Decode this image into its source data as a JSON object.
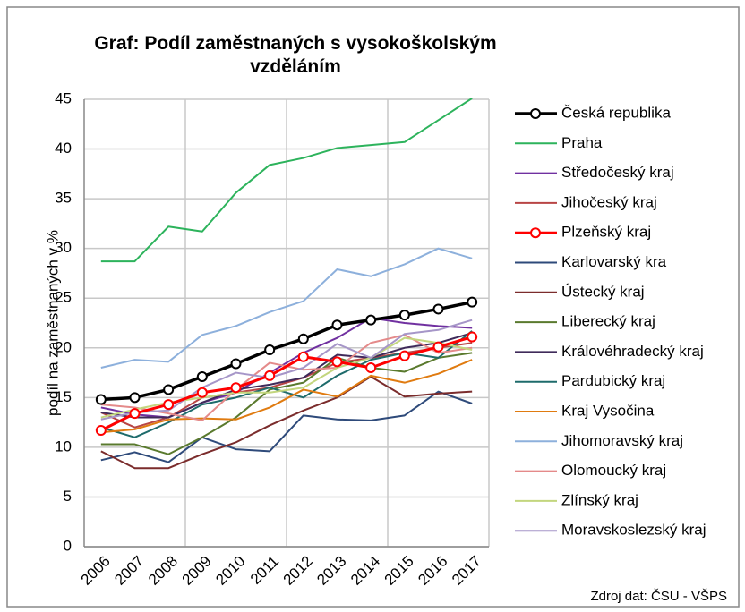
{
  "chart_data": {
    "type": "line",
    "title": "Graf: Podíl zaměstnaných s vysokoškolským vzděláním",
    "y_label": "podíl na zaměstnaných v %",
    "source": "Zdroj dat: ČSU - VŠPS",
    "categories": [
      "2006",
      "2007",
      "2008",
      "2009",
      "2010",
      "2011",
      "2012",
      "2013",
      "2014",
      "2015",
      "2016",
      "2017"
    ],
    "ylim": [
      0,
      45
    ],
    "yticks": [
      0,
      5,
      10,
      15,
      20,
      25,
      30,
      35,
      40,
      45
    ],
    "grid": true,
    "x_grid_every": 3,
    "legend": "right",
    "series": [
      {
        "name": "Česká republika",
        "color": "#000000",
        "width": 3.5,
        "markers": true,
        "values": [
          14.8,
          15.0,
          15.8,
          17.1,
          18.4,
          19.8,
          20.9,
          22.3,
          22.8,
          23.3,
          23.9,
          24.6
        ]
      },
      {
        "name": "Praha",
        "color": "#2db35c",
        "width": 2,
        "values": [
          28.7,
          28.7,
          32.2,
          31.7,
          35.6,
          38.4,
          39.1,
          40.1,
          40.4,
          40.7,
          42.9,
          45.1
        ]
      },
      {
        "name": "Středočeský kraj",
        "color": "#7030a0",
        "width": 2,
        "values": [
          14.0,
          13.3,
          13.0,
          14.5,
          15.5,
          17.5,
          19.5,
          21.0,
          23.0,
          22.5,
          22.2,
          22.0
        ]
      },
      {
        "name": "Jihočeský kraj",
        "color": "#b84545",
        "width": 2,
        "values": [
          13.5,
          12.0,
          13.0,
          15.0,
          15.5,
          16.0,
          17.0,
          18.5,
          19.0,
          19.5,
          20.0,
          20.5
        ]
      },
      {
        "name": "Plzeňský kraj",
        "color": "#ff0000",
        "width": 3,
        "markers": true,
        "values": [
          11.7,
          13.4,
          14.3,
          15.5,
          16.0,
          17.2,
          19.1,
          18.6,
          18.0,
          19.2,
          20.1,
          21.1
        ]
      },
      {
        "name": "Karlovarský kra",
        "color": "#2e4a7a",
        "width": 2,
        "values": [
          8.7,
          9.5,
          8.5,
          11.0,
          9.8,
          9.6,
          13.2,
          12.8,
          12.7,
          13.2,
          15.6,
          14.4
        ]
      },
      {
        "name": "Ústecký kraj",
        "color": "#7b2c2c",
        "width": 2,
        "values": [
          9.6,
          7.9,
          7.9,
          9.3,
          10.5,
          12.2,
          13.7,
          15.0,
          17.1,
          15.1,
          15.4,
          15.6
        ]
      },
      {
        "name": "Liberecký kraj",
        "color": "#5a7a2e",
        "width": 2,
        "values": [
          10.3,
          10.3,
          9.3,
          11.0,
          13.0,
          15.8,
          16.5,
          19.0,
          18.0,
          17.6,
          19.0,
          19.5
        ]
      },
      {
        "name": "Královéhradecký kraj",
        "color": "#3f2a5a",
        "width": 2,
        "values": [
          13.5,
          13.0,
          13.0,
          14.5,
          15.8,
          16.3,
          17.0,
          19.3,
          19.0,
          20.0,
          20.5,
          21.5
        ]
      },
      {
        "name": "Pardubický kraj",
        "color": "#1e6b6b",
        "width": 2,
        "values": [
          12.0,
          11.0,
          12.5,
          14.3,
          15.0,
          16.0,
          15.0,
          17.2,
          18.8,
          19.5,
          19.0,
          21.7
        ]
      },
      {
        "name": "Kraj Vysočina",
        "color": "#e07b10",
        "width": 2,
        "values": [
          11.5,
          11.8,
          12.8,
          12.9,
          12.8,
          14.0,
          15.8,
          15.1,
          17.2,
          16.5,
          17.4,
          18.8
        ]
      },
      {
        "name": "Jihomoravský kraj",
        "color": "#8db0dc",
        "width": 2,
        "values": [
          18.0,
          18.8,
          18.6,
          21.3,
          22.2,
          23.6,
          24.7,
          27.9,
          27.2,
          28.4,
          30.0,
          29.0
        ]
      },
      {
        "name": "Olomoucký kraj",
        "color": "#e48a8a",
        "width": 2,
        "values": [
          14.3,
          14.0,
          13.4,
          12.7,
          15.8,
          18.5,
          17.8,
          18.0,
          20.5,
          21.3,
          19.5,
          20.0
        ]
      },
      {
        "name": "Zlínský kraj",
        "color": "#c3d67e",
        "width": 2,
        "values": [
          13.0,
          13.8,
          14.5,
          15.0,
          15.5,
          15.5,
          16.0,
          18.0,
          19.0,
          21.0,
          20.5,
          19.8
        ]
      },
      {
        "name": "Moravskoslezský kraj",
        "color": "#a696c8",
        "width": 2,
        "values": [
          12.8,
          13.5,
          13.7,
          16.0,
          17.5,
          17.0,
          18.0,
          20.4,
          19.0,
          21.4,
          21.8,
          22.8
        ]
      }
    ]
  }
}
